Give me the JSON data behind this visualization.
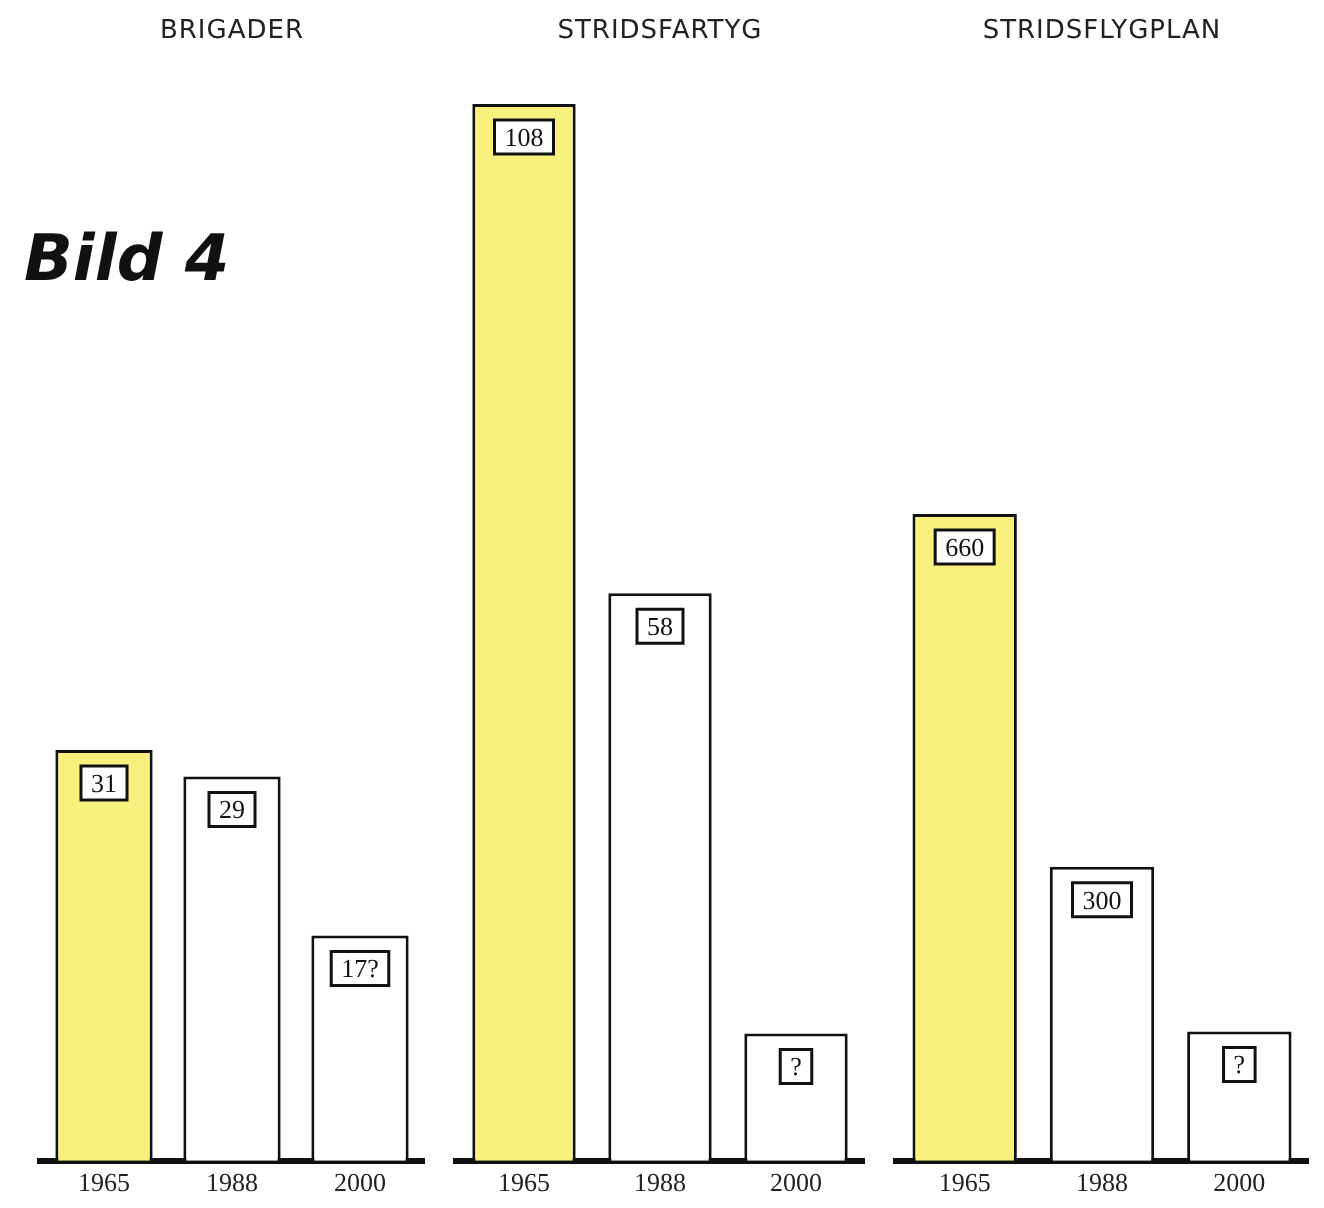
{
  "chart_data": [
    {
      "type": "bar",
      "title": "BRIGADER",
      "annotations": [
        "Bild 4"
      ],
      "categories": [
        "1965",
        "1988",
        "2000"
      ],
      "values": [
        31,
        29,
        17
      ],
      "colors": [
        "#f7f07c",
        "#ffffff",
        "#ffffff"
      ],
      "value_labels": [
        "31",
        "29",
        "17?"
      ],
      "tick_labels": "x",
      "grid": false,
      "legend": false
    },
    {
      "type": "bar",
      "title": "STRIDSFARTYG",
      "categories": [
        "1965",
        "1988",
        "2000"
      ],
      "values": [
        108,
        58,
        13
      ],
      "colors": [
        "#f7f07c",
        "#ffffff",
        "#ffffff"
      ],
      "value_labels": [
        "108",
        "58",
        "?"
      ],
      "tick_labels": "x",
      "grid": false,
      "legend": false
    },
    {
      "type": "bar",
      "title": "STRIDSFLYGPLAN",
      "categories": [
        "1965",
        "1988",
        "2000"
      ],
      "values": [
        660,
        300,
        132
      ],
      "colors": [
        "#f7f07c",
        "#ffffff",
        "#ffffff"
      ],
      "value_labels": [
        "660",
        "300",
        "?"
      ],
      "tick_labels": "x",
      "grid": false,
      "legend": false
    }
  ]
}
